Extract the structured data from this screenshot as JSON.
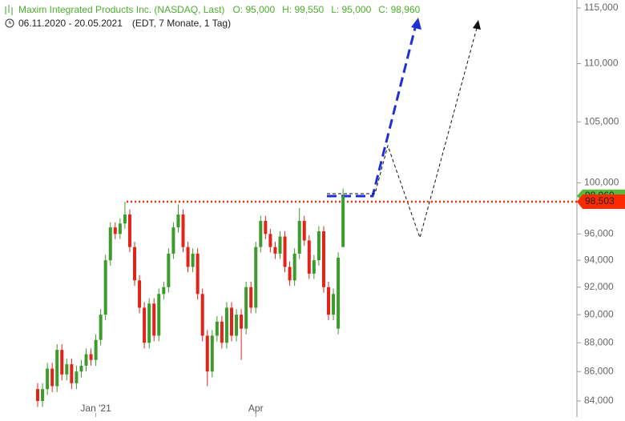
{
  "chart_data": {
    "type": "candlestick",
    "title": "Maxim Integrated Products Inc. (NASDAQ, Last)",
    "ohlc_labels": [
      "O: 95,000",
      "H: 99,550",
      "L: 95,000",
      "C: 98,960"
    ],
    "subtitle": "06.11.2020 - 20.05.2021",
    "subtitle_note": "(EDT, 7 Monate, 1 Tag)",
    "log_scale": true,
    "up_color": "#3c9b2c",
    "down_color": "#e2231a",
    "categories": [
      null,
      null,
      null,
      null,
      null,
      null,
      null,
      null,
      null,
      null,
      null,
      null,
      "Jan '21",
      null,
      null,
      null,
      null,
      null,
      null,
      null,
      null,
      null,
      null,
      null,
      null,
      null,
      null,
      null,
      null,
      null,
      null,
      null,
      null,
      null,
      null,
      null,
      null,
      null,
      null,
      null,
      null,
      null,
      null,
      null,
      null,
      "Apr",
      null,
      null,
      null,
      null,
      null,
      null,
      null,
      null,
      null,
      null,
      null,
      null,
      null,
      null,
      null,
      null,
      null,
      null
    ],
    "series": [
      {
        "name": "Maxim Integrated Products Inc.",
        "open": [
          84800,
          84000,
          84800,
          86200,
          85000,
          87500,
          85800,
          86500,
          85200,
          86000,
          86400,
          87200,
          86800,
          88200,
          90000,
          94000,
          96500,
          96000,
          96800,
          97500,
          95000,
          92500,
          90500,
          88000,
          90800,
          88500,
          91500,
          92000,
          94500,
          96500,
          97500,
          95000,
          93500,
          94500,
          91500,
          88500,
          86000,
          88500,
          89500,
          88000,
          90500,
          88500,
          90000,
          89000,
          92000,
          90500,
          95000,
          97000,
          96000,
          95000,
          94500,
          95800,
          93500,
          92500,
          94500,
          97000,
          95500,
          93000,
          94000,
          96200,
          92000,
          90000,
          89000,
          95000
        ],
        "high": [
          85200,
          85200,
          86600,
          86600,
          87900,
          87900,
          86900,
          86900,
          86400,
          86800,
          87600,
          87600,
          88600,
          90400,
          94400,
          96900,
          96900,
          97200,
          98500,
          97900,
          95400,
          92900,
          90900,
          91200,
          91200,
          91900,
          92400,
          94900,
          96900,
          98300,
          97900,
          95400,
          94900,
          94900,
          91900,
          88900,
          88900,
          89900,
          89900,
          90900,
          90900,
          90400,
          90400,
          92400,
          92400,
          95400,
          97400,
          97400,
          96400,
          95400,
          96200,
          96200,
          93900,
          94900,
          98000,
          97400,
          95900,
          94400,
          96600,
          96600,
          92400,
          91900,
          94600,
          99550
        ],
        "low": [
          83600,
          83600,
          84400,
          84600,
          84600,
          85400,
          85400,
          84800,
          84800,
          85600,
          86000,
          86400,
          86400,
          87800,
          89600,
          93600,
          95600,
          95600,
          96400,
          94600,
          92100,
          90100,
          87600,
          87600,
          88100,
          88100,
          91100,
          91600,
          94100,
          96100,
          94600,
          93100,
          93100,
          91100,
          88100,
          85000,
          85600,
          88100,
          87600,
          87600,
          88100,
          88100,
          86800,
          88600,
          90100,
          90100,
          94600,
          95600,
          94600,
          94100,
          94100,
          93100,
          92100,
          92100,
          94100,
          95100,
          92600,
          92600,
          93600,
          91600,
          89600,
          89600,
          88600,
          95000
        ],
        "close": [
          84000,
          84800,
          86200,
          85000,
          87500,
          85800,
          86500,
          85200,
          86000,
          86400,
          87200,
          86800,
          88200,
          90000,
          94000,
          96500,
          96000,
          96800,
          97500,
          95000,
          92500,
          90500,
          88000,
          90800,
          88500,
          91500,
          92000,
          94500,
          96500,
          97500,
          95000,
          93500,
          94500,
          91500,
          88500,
          86000,
          88500,
          89500,
          88000,
          90500,
          88500,
          90000,
          89000,
          92000,
          90500,
          95000,
          97000,
          96000,
          95000,
          94500,
          95800,
          93500,
          92500,
          94500,
          97000,
          95500,
          93000,
          94000,
          96200,
          92000,
          90000,
          91500,
          94200,
          98960
        ]
      }
    ],
    "ylim": [
      82930,
      115740
    ],
    "yticks": [
      {
        "value": 84000,
        "label": "84,000"
      },
      {
        "value": 86000,
        "label": "86,000"
      },
      {
        "value": 88000,
        "label": "88,000"
      },
      {
        "value": 90000,
        "label": "90,000"
      },
      {
        "value": 92000,
        "label": "92,000"
      },
      {
        "value": 94000,
        "label": "94,000"
      },
      {
        "value": 96000,
        "label": "96,000"
      },
      {
        "value": 100000,
        "label": "100,000"
      },
      {
        "value": 105000,
        "label": "105,000"
      },
      {
        "value": 110000,
        "label": "110,000"
      },
      {
        "value": 115000,
        "label": "115,000"
      }
    ],
    "last_price": {
      "value": 98960,
      "label": "98,960",
      "color": "#5cb83c"
    },
    "level": {
      "value": 98503,
      "label": "98,503",
      "color": "#ff2a00"
    }
  }
}
